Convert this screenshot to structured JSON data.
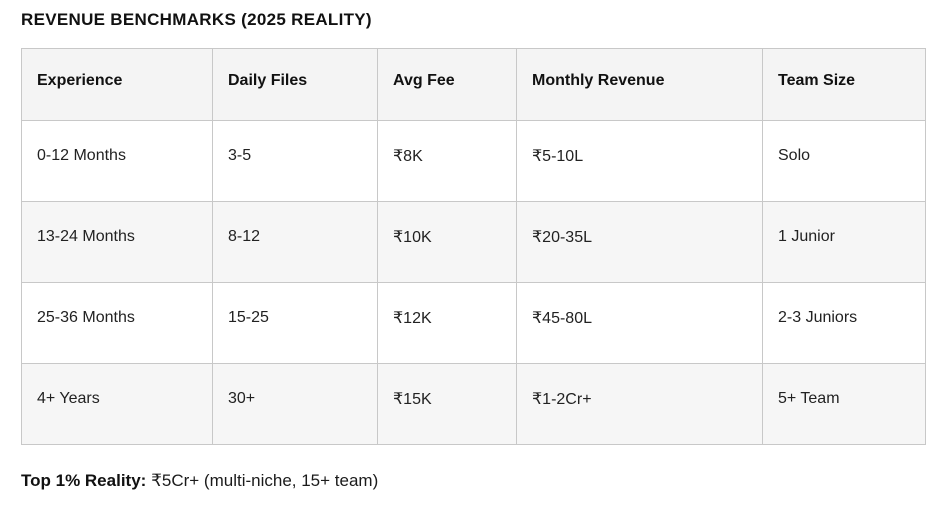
{
  "page": {
    "title": "REVENUE BENCHMARKS (2025 REALITY)"
  },
  "table": {
    "columns": [
      "Experience",
      "Daily Files",
      "Avg Fee",
      "Monthly Revenue",
      "Team Size"
    ],
    "rows": [
      [
        "0-12 Months",
        "3-5",
        "₹8K",
        "₹5-10L",
        "Solo"
      ],
      [
        "13-24 Months",
        "8-12",
        "₹10K",
        "₹20-35L",
        "1 Junior"
      ],
      [
        "25-36 Months",
        "15-25",
        "₹12K",
        "₹45-80L",
        "2-3 Juniors"
      ],
      [
        "4+ Years",
        "30+",
        "₹15K",
        "₹1-2Cr+",
        "5+ Team"
      ]
    ]
  },
  "footnote": {
    "label": "Top 1% Reality:",
    "value": "₹5Cr+ (multi-niche, 15+ team)"
  },
  "colors": {
    "header_bg": "#f4f4f4",
    "stripe_bg": "#f6f6f6",
    "border": "#c8c8c8",
    "text": "#1b1b1b"
  }
}
